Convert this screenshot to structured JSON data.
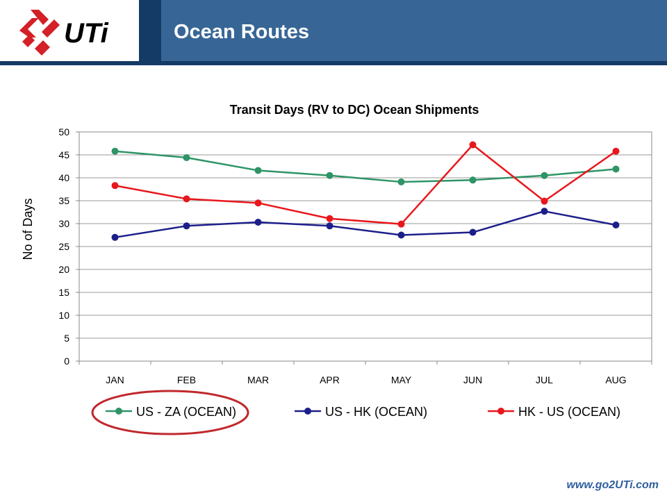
{
  "header": {
    "title": "Ocean Routes",
    "logo_text": "UTi"
  },
  "footer": {
    "url": "www.go2UTi.com"
  },
  "colors": {
    "brand_dark": "#143a66",
    "brand": "#376696",
    "logo_red": "#d42027",
    "highlight_ellipse": "#c0282c"
  },
  "chart_data": {
    "type": "line",
    "title": "Transit Days (RV to DC) Ocean Shipments",
    "xlabel": "",
    "ylabel": "No of Days",
    "categories": [
      "JAN",
      "FEB",
      "MAR",
      "APR",
      "MAY",
      "JUN",
      "JUL",
      "AUG"
    ],
    "ylim": [
      0,
      50
    ],
    "yticks": [
      0,
      5,
      10,
      15,
      20,
      25,
      30,
      35,
      40,
      45,
      50
    ],
    "grid": true,
    "legend_position": "bottom",
    "series": [
      {
        "name": "US - ZA (OCEAN)",
        "color": "#2e9466",
        "values": [
          45.8,
          44.4,
          41.6,
          40.5,
          39.1,
          39.5,
          40.5,
          41.9
        ]
      },
      {
        "name": "US - HK (OCEAN)",
        "color": "#1c1f8a",
        "values": [
          27.0,
          29.5,
          30.3,
          29.5,
          27.5,
          28.1,
          32.7,
          29.7
        ]
      },
      {
        "name": "HK - US (OCEAN)",
        "color": "#e8171c",
        "values": [
          38.3,
          35.4,
          34.5,
          31.1,
          29.9,
          47.2,
          34.9,
          45.8
        ]
      }
    ],
    "highlighted_series": "US - ZA (OCEAN)"
  }
}
